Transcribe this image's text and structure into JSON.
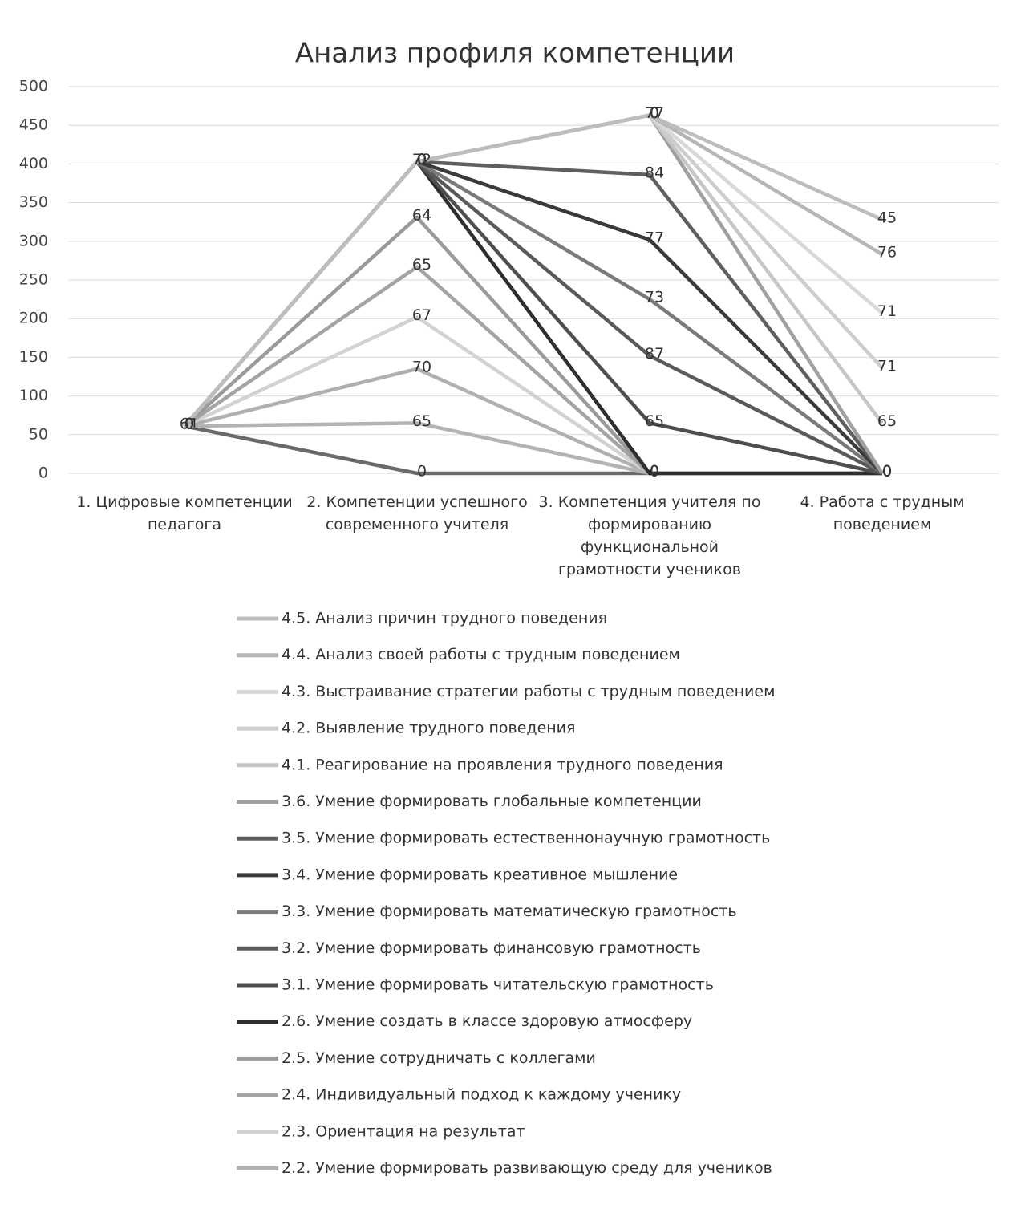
{
  "chart_data": {
    "type": "stacked-line",
    "title": "Анализ профиля компетенции",
    "categories": [
      "1. Цифровые компетенции педагога",
      "2. Компетенции успешного современного учителя",
      "3. Компетенция учителя по формированию функциональной грамотности учеников",
      "4. Работа с трудным поведением"
    ],
    "ylim": [
      0,
      500
    ],
    "yticks": [
      0,
      50,
      100,
      150,
      200,
      250,
      300,
      350,
      400,
      450,
      500
    ],
    "grid": true,
    "series": [
      {
        "color": "#6a6a6a",
        "values": [
          61,
          0,
          0,
          0
        ]
      },
      {
        "color": "#b3b3b3",
        "values": [
          0,
          65,
          0,
          0
        ]
      },
      {
        "name": "2.2. Умение формировать развивающую  среду для учеников",
        "color": "#b0b0b0",
        "values": [
          0,
          70,
          0,
          0
        ]
      },
      {
        "name": "2.3. Ориентация на результат",
        "color": "#d2d2d2",
        "values": [
          0,
          67,
          0,
          0
        ]
      },
      {
        "name": "2.4. Индивидуальный подход к каждому ученику",
        "color": "#a4a4a4",
        "values": [
          0,
          65,
          0,
          0
        ]
      },
      {
        "name": "2.5. Умение сотрудничать с коллегами",
        "color": "#9a9a9a",
        "values": [
          0,
          64,
          0,
          0
        ]
      },
      {
        "name": "2.6. Умение создать в классе здоровую атмосферу",
        "color": "#2e2e2e",
        "values": [
          0,
          72,
          0,
          0
        ]
      },
      {
        "name": "3.1. Умение формировать читательскую грамотность",
        "color": "#4e4e4e",
        "values": [
          0,
          0,
          65,
          0
        ]
      },
      {
        "name": "3.2. Умение формировать финансовую грамотность",
        "color": "#5a5a5a",
        "values": [
          0,
          0,
          87,
          0
        ]
      },
      {
        "name": "3.3. Умение формировать математическую грамотность",
        "color": "#7a7a7a",
        "values": [
          0,
          0,
          73,
          0
        ]
      },
      {
        "name": "3.4. Умение формировать креативное мышление",
        "color": "#3a3a3a",
        "values": [
          0,
          0,
          77,
          0
        ]
      },
      {
        "name": "3.5. Умение формировать естественнонаучную грамотность",
        "color": "#5f5f5f",
        "values": [
          0,
          0,
          84,
          0
        ]
      },
      {
        "name": "3.6. Умение формировать глобальные компетенции",
        "color": "#a0a0a0",
        "values": [
          0,
          0,
          77,
          0
        ]
      },
      {
        "name": "4.1. Реагирование на проявления трудного поведения",
        "color": "#c6c6c6",
        "values": [
          0,
          0,
          0,
          65
        ]
      },
      {
        "name": "4.2. Выявление трудного поведения",
        "color": "#cdcdcd",
        "values": [
          0,
          0,
          0,
          71
        ]
      },
      {
        "name": "4.3. Выстраивание стратегии работы с трудным поведением",
        "color": "#d8d8d8",
        "values": [
          0,
          0,
          0,
          71
        ]
      },
      {
        "name": "4.4. Анализ своей работы с трудным поведением",
        "color": "#b6b6b6",
        "values": [
          0,
          0,
          0,
          76
        ]
      },
      {
        "name": "4.5. Анализ причин трудного поведения",
        "color": "#bdbdbd",
        "values": [
          0,
          0,
          0,
          45
        ]
      }
    ]
  }
}
